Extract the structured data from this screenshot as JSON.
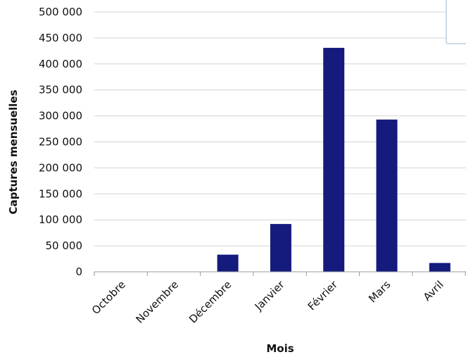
{
  "chart_data": {
    "type": "bar",
    "title": "",
    "xlabel": "Mois",
    "ylabel": "Captures mensuelles",
    "categories": [
      "Octobre",
      "Novembre",
      "Décembre",
      "Janvier",
      "Février",
      "Mars",
      "Avril"
    ],
    "series": [
      {
        "values": [
          0,
          0,
          33000,
          92000,
          431000,
          293000,
          17000
        ]
      }
    ],
    "ylim": [
      0,
      500000
    ],
    "y_ticks": [
      "0",
      "50 000",
      "100 000",
      "150 000",
      "200 000",
      "250 000",
      "300 000",
      "350 000",
      "400 000",
      "450 000",
      "500 000"
    ],
    "y_tick_values": [
      0,
      50000,
      100000,
      150000,
      200000,
      250000,
      300000,
      350000,
      400000,
      450000,
      500000
    ],
    "grid": true,
    "legend": "top-right",
    "colors": {
      "bar": "#141b7c",
      "grid": "#d4d4d4",
      "axis": "#9a9a9a",
      "legend_border": "#b8cfe0"
    }
  }
}
